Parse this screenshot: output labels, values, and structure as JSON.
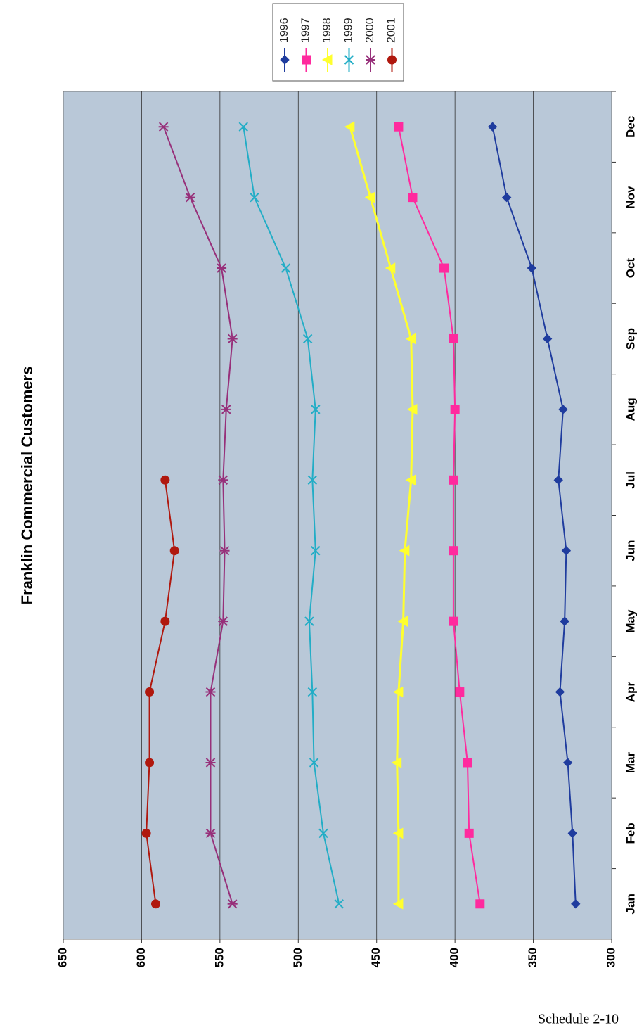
{
  "chart_data": {
    "type": "line",
    "title": "Franklin Commercial Customers",
    "categories": [
      "Jan",
      "Feb",
      "Mar",
      "Apr",
      "May",
      "Jun",
      "Jul",
      "Aug",
      "Sep",
      "Oct",
      "Nov",
      "Dec"
    ],
    "series": [
      {
        "name": "1996",
        "color": "#1f3c9e",
        "marker": "diamond",
        "values": [
          323,
          325,
          328,
          333,
          330,
          329,
          334,
          331,
          341,
          351,
          367,
          376
        ]
      },
      {
        "name": "1997",
        "color": "#ff2a9e",
        "marker": "square",
        "values": [
          384,
          391,
          392,
          397,
          401,
          401,
          401,
          400,
          401,
          407,
          427,
          436
        ]
      },
      {
        "name": "1998",
        "color": "#ffff2e",
        "marker": "triangle",
        "values": [
          436,
          436,
          437,
          436,
          433,
          432,
          428,
          427,
          428,
          441,
          454,
          467
        ]
      },
      {
        "name": "1999",
        "color": "#22adc6",
        "marker": "x",
        "values": [
          474,
          484,
          490,
          491,
          493,
          489,
          491,
          489,
          494,
          508,
          528,
          535
        ]
      },
      {
        "name": "2000",
        "color": "#97307a",
        "marker": "star",
        "values": [
          542,
          556,
          556,
          556,
          548,
          547,
          548,
          546,
          542,
          549,
          569,
          586
        ]
      },
      {
        "name": "2001",
        "color": "#b0180e",
        "marker": "circle",
        "values": [
          591,
          597,
          595,
          595,
          585,
          579,
          585,
          null,
          null,
          null,
          null,
          null
        ]
      }
    ],
    "ylim": [
      300,
      650
    ],
    "yticks": [
      300,
      350,
      400,
      450,
      500,
      550,
      600,
      650
    ],
    "grid": true,
    "legend": "top"
  },
  "footer": "Schedule 2-10"
}
